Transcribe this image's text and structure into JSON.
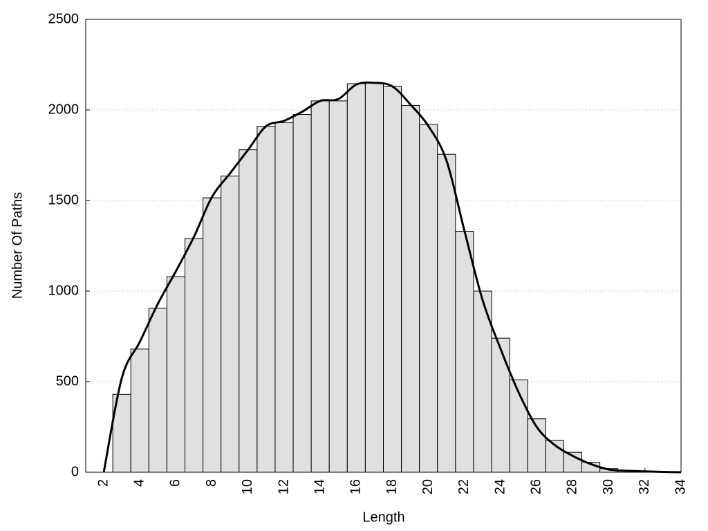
{
  "chart_data": {
    "type": "histogram",
    "x_label": "Length",
    "y_label": "Number Of Paths",
    "bins": [
      2.5,
      3.5,
      4.5,
      5.5,
      6.5,
      7.5,
      8.5,
      9.5,
      10.5,
      11.5,
      12.5,
      13.5,
      14.5,
      15.5,
      16.5,
      17.5,
      18.5,
      19.5,
      20.5,
      21.5,
      22.5,
      23.5,
      24.5,
      25.5,
      26.5,
      27.5,
      28.5,
      29.5,
      30.5,
      31.5,
      32.5,
      33.5
    ],
    "values": [
      430,
      680,
      905,
      1080,
      1290,
      1515,
      1635,
      1780,
      1910,
      1930,
      1975,
      2050,
      2050,
      2145,
      2150,
      2130,
      2025,
      1920,
      1755,
      1330,
      1000,
      740,
      510,
      295,
      175,
      110,
      55,
      20,
      10,
      5,
      3
    ],
    "color": "#e0e0e0",
    "line": {
      "color": "#000000",
      "x": [
        2,
        3,
        4,
        5,
        6,
        7,
        8,
        9,
        10,
        11,
        12,
        13,
        14,
        15,
        16,
        17,
        18,
        19,
        20,
        21,
        22,
        23,
        24,
        25,
        26,
        27,
        28,
        29,
        30,
        31,
        32,
        33,
        34
      ],
      "values": [
        0,
        520,
        720,
        930,
        1110,
        1300,
        1520,
        1650,
        1780,
        1910,
        1940,
        1990,
        2050,
        2060,
        2140,
        2150,
        2130,
        2030,
        1910,
        1720,
        1330,
        950,
        680,
        440,
        250,
        150,
        90,
        45,
        15,
        8,
        5,
        2,
        0
      ]
    },
    "xlim": [
      1,
      34
    ],
    "ylim": [
      0,
      2500
    ],
    "xticks": [
      2,
      4,
      6,
      8,
      10,
      12,
      14,
      16,
      18,
      20,
      22,
      24,
      26,
      28,
      30,
      32,
      34
    ],
    "yticks": [
      0,
      500,
      1000,
      1500,
      2000,
      2500
    ],
    "grid": true
  }
}
